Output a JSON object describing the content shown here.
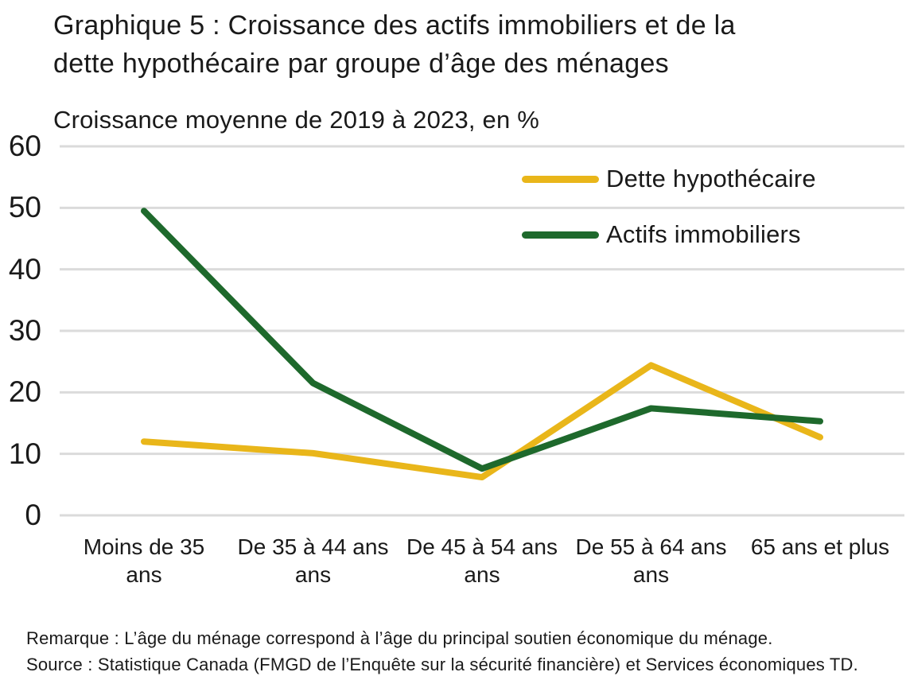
{
  "header": {
    "title_line1": "Graphique 5 : Croissance des actifs immobiliers et de la",
    "title_line2": "dette hypothécaire par groupe d’âge des ménages",
    "subtitle": "Croissance moyenne de 2019 à 2023, en %"
  },
  "chart_data": {
    "type": "line",
    "title": "Graphique 5 : Croissance des actifs immobiliers et de la dette hypothécaire par groupe d’âge des ménages",
    "ylabel": "Croissance moyenne de 2019 à 2023, en %",
    "categories": [
      "Moins de 35 ans",
      "De 35 à 44 ans ans",
      "De 45 à 54 ans ans",
      "De 55 à 64 ans ans",
      "65 ans et plus"
    ],
    "category_label_lines": [
      [
        "Moins de 35",
        "ans"
      ],
      [
        "De 35 à 44 ans",
        "ans"
      ],
      [
        "De 45 à 54 ans",
        "ans"
      ],
      [
        "De 55 à 64 ans",
        "ans"
      ],
      [
        "65 ans et plus"
      ]
    ],
    "series": [
      {
        "name": "Dette hypothécaire",
        "color": "#E9B61A",
        "values": [
          12,
          10.1,
          6.2,
          24.4,
          12.7
        ]
      },
      {
        "name": "Actifs immobiliers",
        "color": "#1E692C",
        "values": [
          49.5,
          21.5,
          7.6,
          17.4,
          15.3
        ]
      }
    ],
    "yticks": [
      0,
      10,
      20,
      30,
      40,
      50,
      60
    ],
    "ylim": [
      0,
      60
    ],
    "grid": "horizontal-light-gray",
    "grid_color": "#DBDBDB",
    "legend_position": "top-right"
  },
  "footnotes": {
    "remark": "Remarque : L’âge du ménage correspond à l’âge du principal soutien économique du ménage.",
    "source": "Source : Statistique Canada (FMGD de l’Enquête sur la sécurité financière) et Services économiques TD."
  }
}
